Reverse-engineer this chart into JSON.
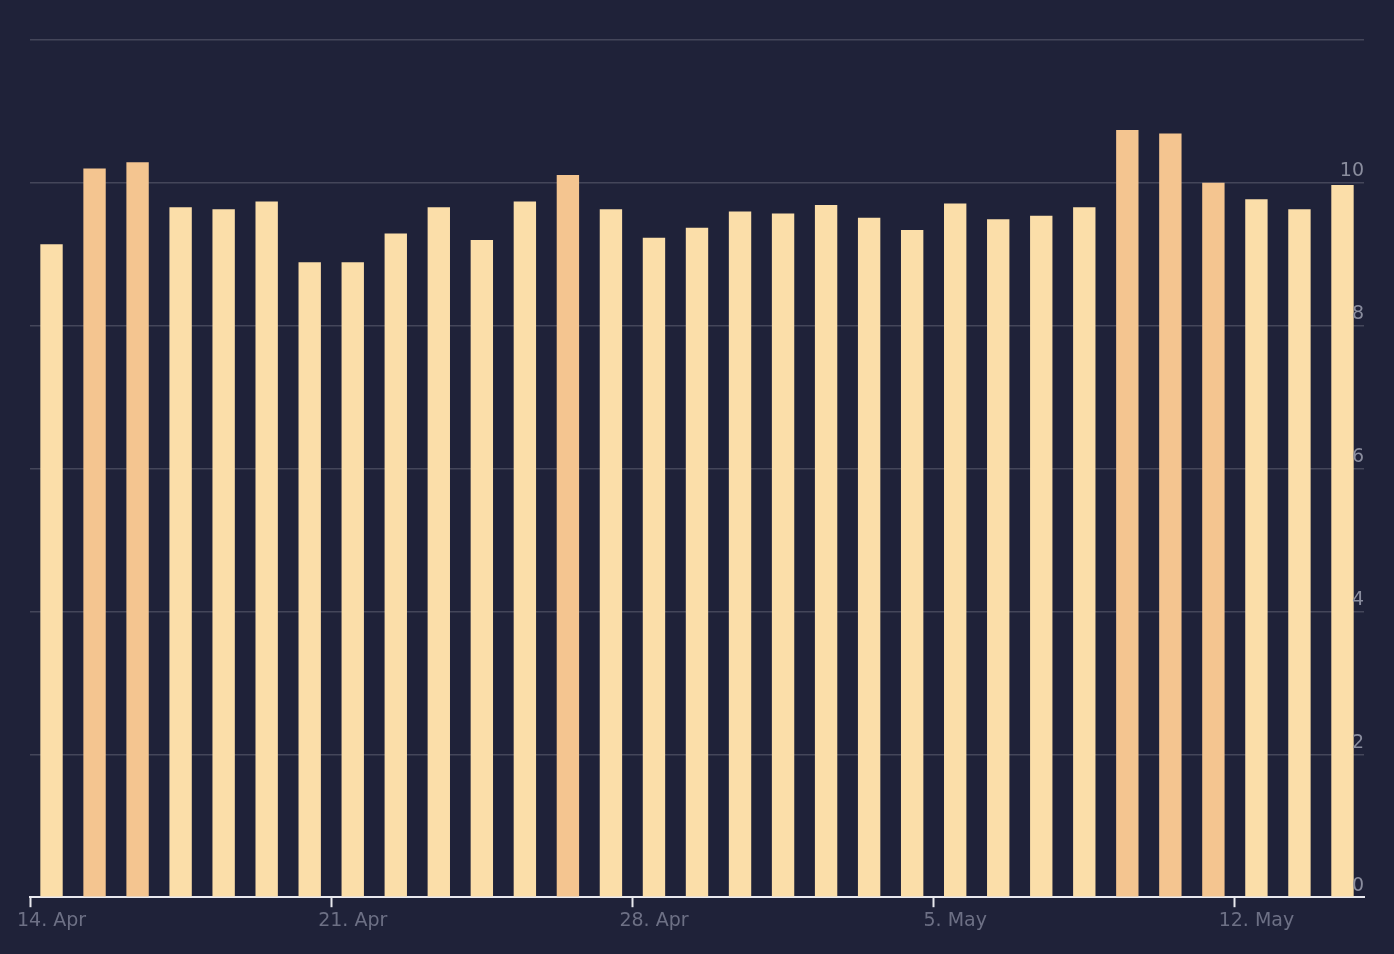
{
  "chart_data": {
    "type": "bar",
    "categories": [
      "14. Apr",
      null,
      null,
      null,
      null,
      null,
      null,
      "21. Apr",
      null,
      null,
      null,
      null,
      null,
      null,
      "28. Apr",
      null,
      null,
      null,
      null,
      null,
      null,
      "5. May",
      null,
      null,
      null,
      null,
      null,
      null,
      "12. May",
      null,
      null
    ],
    "values": [
      9.14,
      10.2,
      10.29,
      9.66,
      9.63,
      9.74,
      8.89,
      8.89,
      9.29,
      9.66,
      9.2,
      9.74,
      10.11,
      9.63,
      9.23,
      9.37,
      9.6,
      9.57,
      9.69,
      9.51,
      9.34,
      9.71,
      9.49,
      9.54,
      9.66,
      10.74,
      10.69,
      10,
      9.77,
      9.63,
      9.97
    ],
    "colors": [
      "#fbdea9",
      "#f4c590",
      "#f4c590",
      "#fbdea9",
      "#fbdea9",
      "#fbdea9",
      "#fbdea9",
      "#fbdea9",
      "#fbdea9",
      "#fbdea9",
      "#fbdea9",
      "#fbdea9",
      "#f4c590",
      "#fbdea9",
      "#fbdea9",
      "#fbdea9",
      "#fbdea9",
      "#fbdea9",
      "#fbdea9",
      "#fbdea9",
      "#fbdea9",
      "#fbdea9",
      "#fbdea9",
      "#fbdea9",
      "#fbdea9",
      "#f4c590",
      "#f4c590",
      "#f4c590",
      "#fbdea9",
      "#fbdea9",
      "#fbdea9"
    ],
    "ylim": [
      0,
      12
    ],
    "yticks": [
      0,
      2,
      4,
      6,
      8,
      10,
      {
        "value": 12,
        "label": null
      }
    ],
    "grid": "y",
    "legend": false
  }
}
